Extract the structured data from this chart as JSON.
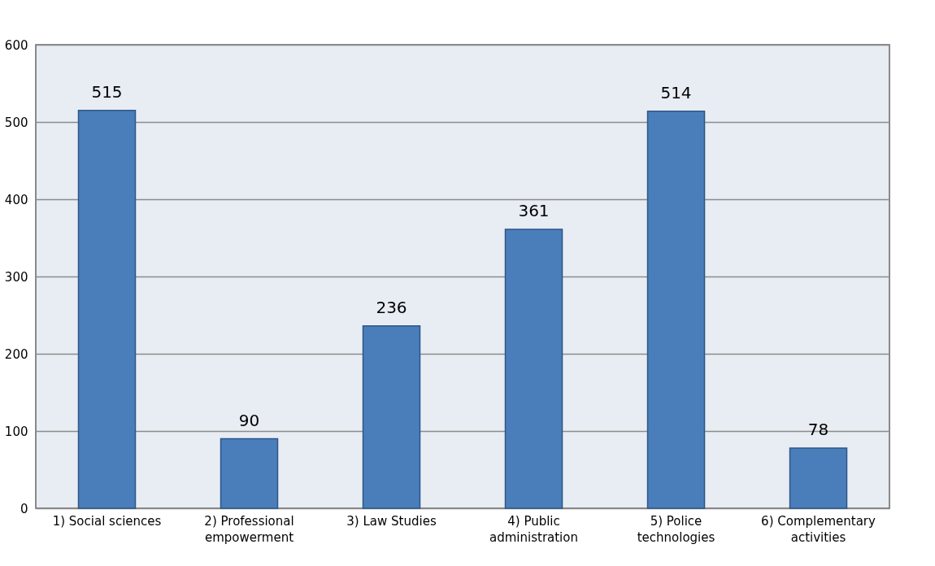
{
  "chart_data": {
    "type": "bar",
    "categories": [
      "1) Social sciences",
      "2) Professional empowerment",
      "3) Law Studies",
      "4) Public administration",
      "5) Police technologies",
      "6) Complementary activities"
    ],
    "values": [
      515,
      90,
      236,
      361,
      514,
      78
    ],
    "color": "#4a7ebb",
    "ylim": [
      0,
      600
    ],
    "yticks": [
      0,
      100,
      200,
      300,
      400,
      500,
      600
    ],
    "grid": "y",
    "data_labels": true
  }
}
